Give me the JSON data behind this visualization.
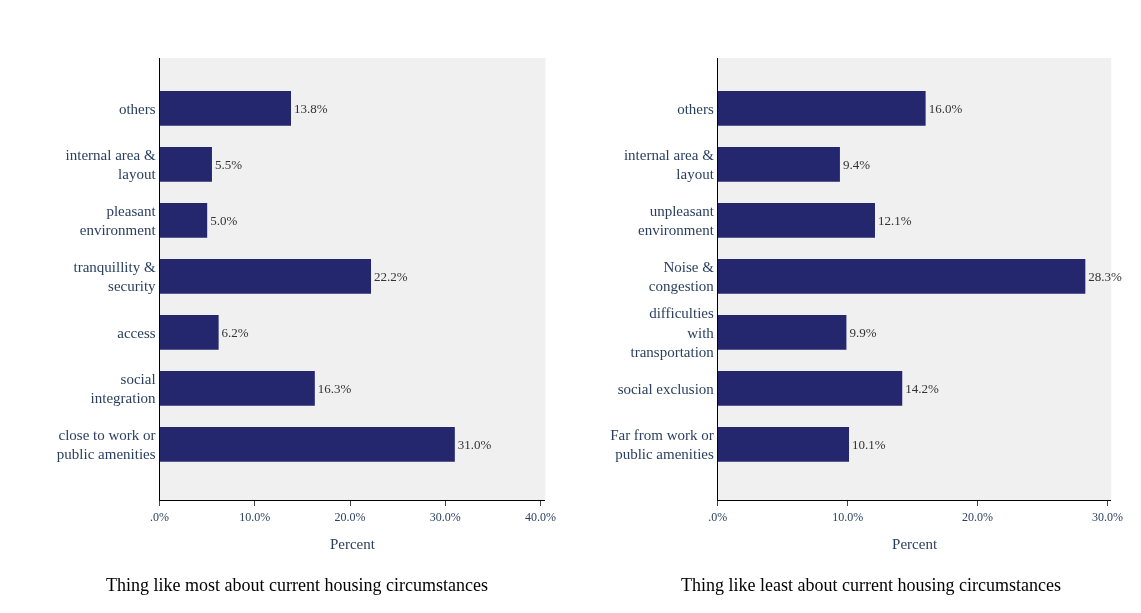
{
  "chart_data": [
    {
      "type": "bar",
      "orientation": "horizontal",
      "categories": [
        "others",
        "internal area & layout",
        "pleasant environment",
        "tranquillity & security",
        "access",
        "social integration",
        "close to work or public amenities"
      ],
      "values": [
        13.8,
        5.5,
        5.0,
        22.2,
        6.2,
        16.3,
        31.0
      ],
      "value_labels": [
        "13.8%",
        "5.5%",
        "5.0%",
        "22.2%",
        "6.2%",
        "16.3%",
        "31.0%"
      ],
      "color": "#25276e",
      "xlim": [
        0,
        40.5
      ],
      "xticks": [
        {
          "value": 0,
          "label": ".0%"
        },
        {
          "value": 10,
          "label": "10.0%"
        },
        {
          "value": 20,
          "label": "20.0%"
        },
        {
          "value": 30,
          "label": "30.0%"
        },
        {
          "value": 40,
          "label": "40.0%"
        }
      ],
      "xlabel": "Percent",
      "grid": false,
      "annotations": [
        "Thing like most about current housing circumstances"
      ]
    },
    {
      "type": "bar",
      "orientation": "horizontal",
      "categories": [
        "others",
        "internal area & layout",
        "unpleasant environment",
        "Noise & congestion",
        "difficulties with transportation",
        "social exclusion",
        "Far from work or public amenities"
      ],
      "values": [
        16.0,
        9.4,
        12.1,
        28.3,
        9.9,
        14.2,
        10.1
      ],
      "value_labels": [
        "16.0%",
        "9.4%",
        "12.1%",
        "28.3%",
        "9.9%",
        "14.2%",
        "10.1%"
      ],
      "color": "#25276e",
      "xlim": [
        0,
        30.3
      ],
      "xticks": [
        {
          "value": 0,
          "label": ".0%"
        },
        {
          "value": 10,
          "label": "10.0%"
        },
        {
          "value": 20,
          "label": "20.0%"
        },
        {
          "value": 30,
          "label": "30.0%"
        }
      ],
      "xlabel": "Percent",
      "grid": false,
      "annotations": [
        "Thing like least about current housing circumstances"
      ]
    }
  ]
}
